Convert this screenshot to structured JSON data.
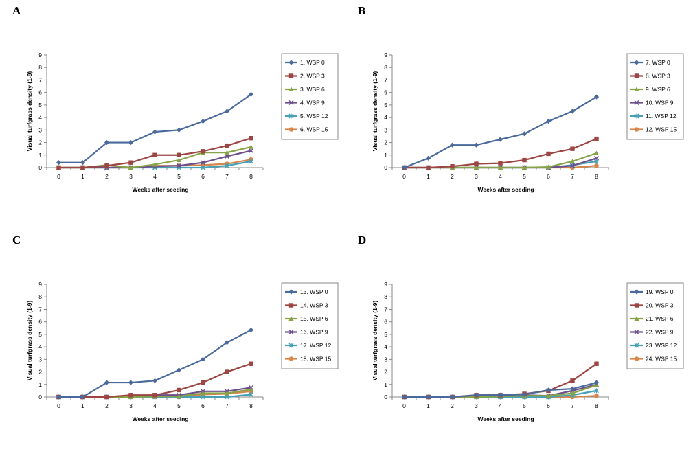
{
  "chart_data": [
    {
      "panel": "A",
      "type": "line",
      "x": [
        0,
        1,
        2,
        3,
        4,
        5,
        6,
        7,
        8
      ],
      "xlabel": "Weeks after seeding",
      "ylabel": "Visual  turfgrass  density (1-9)",
      "ylim": [
        0,
        9
      ],
      "yticks": [
        0,
        1,
        2,
        3,
        4,
        5,
        6,
        7,
        8,
        9
      ],
      "legend": "right",
      "series": [
        {
          "name": "1. WSP 0",
          "values": [
            0.4,
            0.4,
            2.0,
            2.0,
            2.85,
            3.0,
            3.7,
            4.5,
            5.85
          ]
        },
        {
          "name": "2. WSP 3",
          "values": [
            0,
            0,
            0.15,
            0.4,
            1.0,
            1.0,
            1.3,
            1.75,
            2.35
          ]
        },
        {
          "name": "3. WSP 6",
          "values": [
            0,
            0,
            0.2,
            0,
            0.25,
            0.6,
            1.2,
            1.2,
            1.65
          ]
        },
        {
          "name": "4. WSP 9",
          "values": [
            0,
            0,
            0,
            0,
            0.1,
            0.15,
            0.4,
            0.9,
            1.35
          ]
        },
        {
          "name": "5. WSP 12",
          "values": [
            0,
            0,
            0,
            0,
            0,
            0,
            0,
            0.15,
            0.5
          ]
        },
        {
          "name": "6. WSP 15",
          "values": [
            0,
            0,
            0,
            0,
            0.15,
            0.15,
            0.2,
            0.3,
            0.65
          ]
        }
      ]
    },
    {
      "panel": "B",
      "type": "line",
      "x": [
        0,
        1,
        2,
        3,
        4,
        5,
        6,
        7,
        8
      ],
      "xlabel": "Weeks after seeding",
      "ylabel": "Visual  turfgrass  density (1-9)",
      "ylim": [
        0,
        9
      ],
      "yticks": [
        0,
        1,
        2,
        3,
        4,
        5,
        6,
        7,
        8,
        9
      ],
      "legend": "right",
      "series": [
        {
          "name": "7. WSP 0",
          "values": [
            0,
            0.75,
            1.8,
            1.8,
            2.25,
            2.7,
            3.7,
            4.5,
            5.65
          ]
        },
        {
          "name": "8. WSP 3",
          "values": [
            0,
            0,
            0.1,
            0.3,
            0.35,
            0.6,
            1.1,
            1.5,
            2.3
          ]
        },
        {
          "name": "9. WSP 6",
          "values": [
            0,
            0,
            0,
            0,
            0,
            0,
            0.05,
            0.5,
            1.15
          ]
        },
        {
          "name": "10. WSP 9",
          "values": [
            0,
            0,
            0,
            0,
            0,
            0,
            0,
            0.15,
            0.75
          ]
        },
        {
          "name": "11. WSP 12",
          "values": [
            0,
            0,
            0,
            0,
            0,
            0,
            0,
            0.2,
            0.5
          ]
        },
        {
          "name": "12. WSP 15",
          "values": [
            0,
            0,
            0,
            0,
            0,
            0,
            0,
            0,
            0.15
          ]
        }
      ]
    },
    {
      "panel": "C",
      "type": "line",
      "x": [
        0,
        1,
        2,
        3,
        4,
        5,
        6,
        7,
        8
      ],
      "xlabel": "Weeks after seeding",
      "ylabel": "Visual  turfgrass  density (1-9)",
      "ylim": [
        0,
        9
      ],
      "yticks": [
        0,
        1,
        2,
        3,
        4,
        5,
        6,
        7,
        8,
        9
      ],
      "legend": "right",
      "series": [
        {
          "name": "13. WSP 0",
          "values": [
            0,
            0,
            1.15,
            1.15,
            1.3,
            2.15,
            3.0,
            4.35,
            5.35
          ]
        },
        {
          "name": "14. WSP 3",
          "values": [
            0,
            0,
            0,
            0.15,
            0.15,
            0.55,
            1.15,
            2.0,
            2.65
          ]
        },
        {
          "name": "15. WSP 6",
          "values": [
            0,
            0,
            0,
            0,
            0.05,
            0.05,
            0.3,
            0.3,
            0.6
          ]
        },
        {
          "name": "16. WSP 9",
          "values": [
            0,
            0,
            0,
            0.1,
            0.15,
            0.15,
            0.45,
            0.45,
            0.75
          ]
        },
        {
          "name": "17. WSP 12",
          "values": [
            0,
            0,
            0,
            0,
            0,
            0,
            0,
            0,
            0.2
          ]
        },
        {
          "name": "18. WSP 15",
          "values": [
            0,
            0,
            0,
            0,
            0,
            0,
            0.2,
            0.25,
            0.45
          ]
        }
      ]
    },
    {
      "panel": "D",
      "type": "line",
      "x": [
        0,
        1,
        2,
        3,
        4,
        5,
        6,
        7,
        8
      ],
      "xlabel": "Weeks after seeding",
      "ylabel": "Visual  turfgrass  density (1-9)",
      "ylim": [
        0,
        9
      ],
      "yticks": [
        0,
        1,
        2,
        3,
        4,
        5,
        6,
        7,
        8,
        9
      ],
      "legend": "right",
      "series": [
        {
          "name": "19. WSP 0",
          "values": [
            0,
            0,
            0,
            0.15,
            0.15,
            0.2,
            0.55,
            0.65,
            1.15
          ]
        },
        {
          "name": "20. WSP 3",
          "values": [
            0,
            0,
            0,
            0.15,
            0.15,
            0.25,
            0.5,
            1.3,
            2.65
          ]
        },
        {
          "name": "21. WSP 6",
          "values": [
            0,
            0,
            0,
            0,
            0.05,
            0.1,
            0.1,
            0.3,
            0.95
          ]
        },
        {
          "name": "22. WSP 9",
          "values": [
            0,
            0,
            0,
            0.05,
            0.1,
            0.15,
            0.1,
            0.5,
            1.0
          ]
        },
        {
          "name": "23. WSP 12",
          "values": [
            0,
            0,
            0,
            0,
            0,
            0,
            0,
            0.15,
            0.5
          ]
        },
        {
          "name": "24. WSP 15",
          "values": [
            0,
            0,
            0,
            0,
            0,
            0,
            0,
            0,
            0.1
          ]
        }
      ]
    }
  ],
  "style": {
    "series_colors": [
      "#4A6A9C",
      "#9C4543",
      "#87A348",
      "#6C4F8B",
      "#46A0B6",
      "#D6864A"
    ],
    "series_markers": [
      "diamond",
      "square",
      "triangle",
      "x",
      "star",
      "circle"
    ],
    "axis_color": "#888888"
  }
}
